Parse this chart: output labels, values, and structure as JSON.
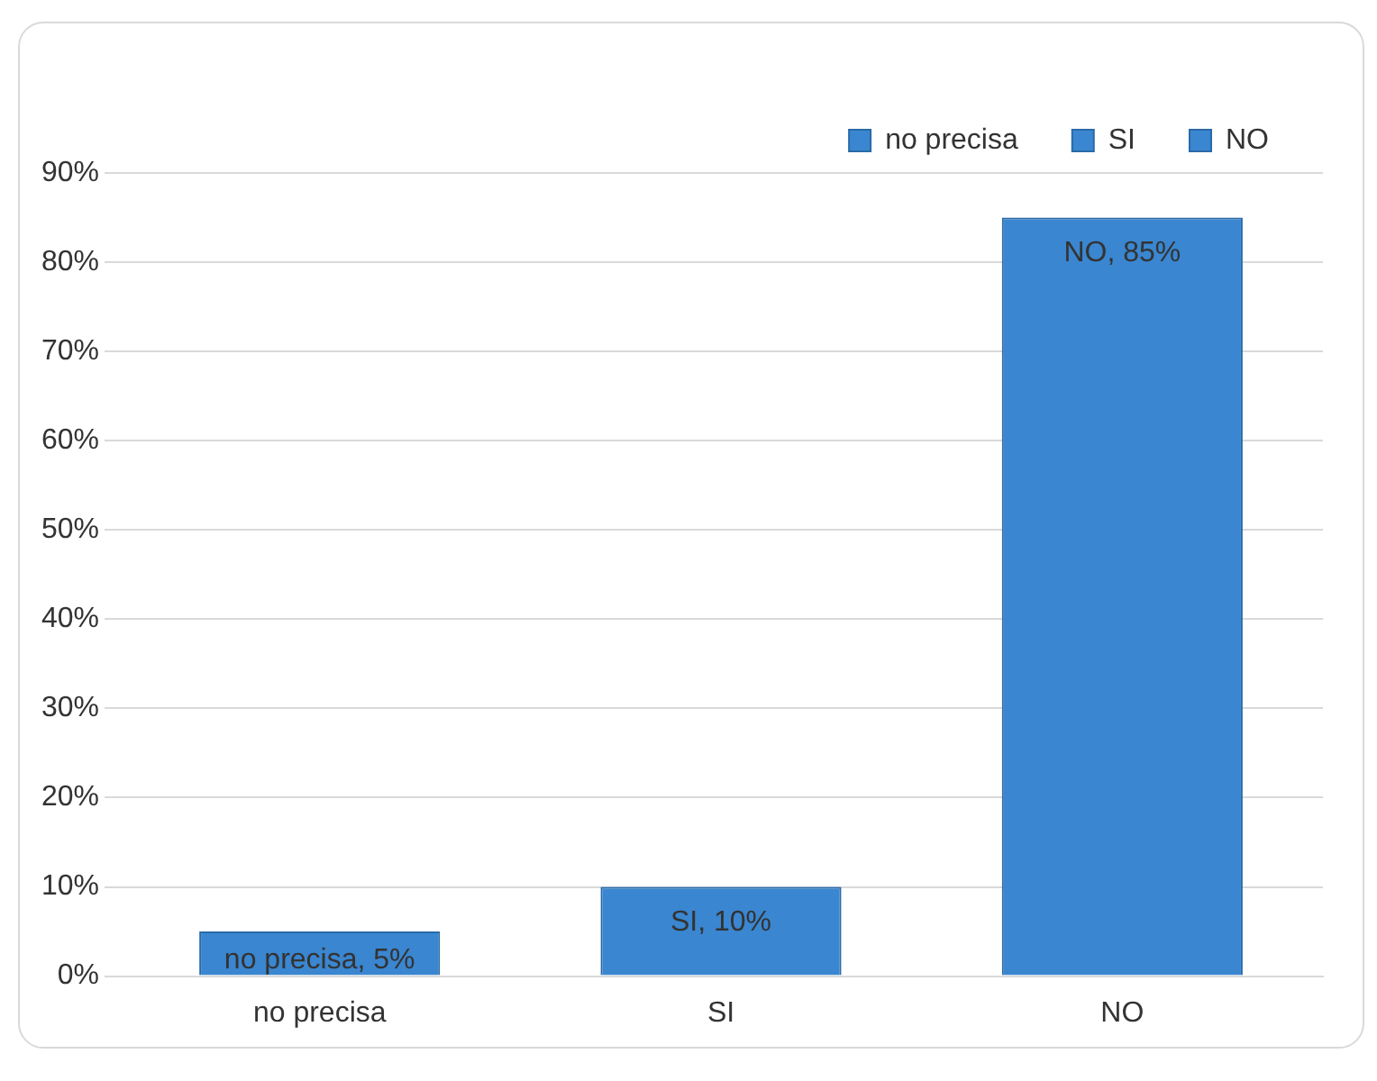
{
  "chart_data": {
    "type": "bar",
    "categories": [
      "no precisa",
      "SI",
      "NO"
    ],
    "series": [
      {
        "name": "no precisa",
        "color": "#3a86d0",
        "values": [
          5,
          null,
          null
        ],
        "value_labels": [
          "no precisa, 5%",
          null,
          null
        ]
      },
      {
        "name": "SI",
        "color": "#3a86d0",
        "values": [
          null,
          10,
          null
        ],
        "value_labels": [
          null,
          "SI, 10%",
          null
        ]
      },
      {
        "name": "NO",
        "color": "#3a86d0",
        "values": [
          null,
          null,
          85
        ],
        "value_labels": [
          null,
          null,
          "NO, 85%"
        ]
      }
    ],
    "ylim": [
      0,
      90
    ],
    "yticks": [
      {
        "value": 0,
        "label": "0%"
      },
      {
        "value": 10,
        "label": "10%"
      },
      {
        "value": 20,
        "label": "20%"
      },
      {
        "value": 30,
        "label": "30%"
      },
      {
        "value": 40,
        "label": "40%"
      },
      {
        "value": 50,
        "label": "50%"
      },
      {
        "value": 60,
        "label": "60%"
      },
      {
        "value": 70,
        "label": "70%"
      },
      {
        "value": 80,
        "label": "80%"
      },
      {
        "value": 90,
        "label": "90%"
      }
    ],
    "grid": "y",
    "legend": "top right"
  }
}
